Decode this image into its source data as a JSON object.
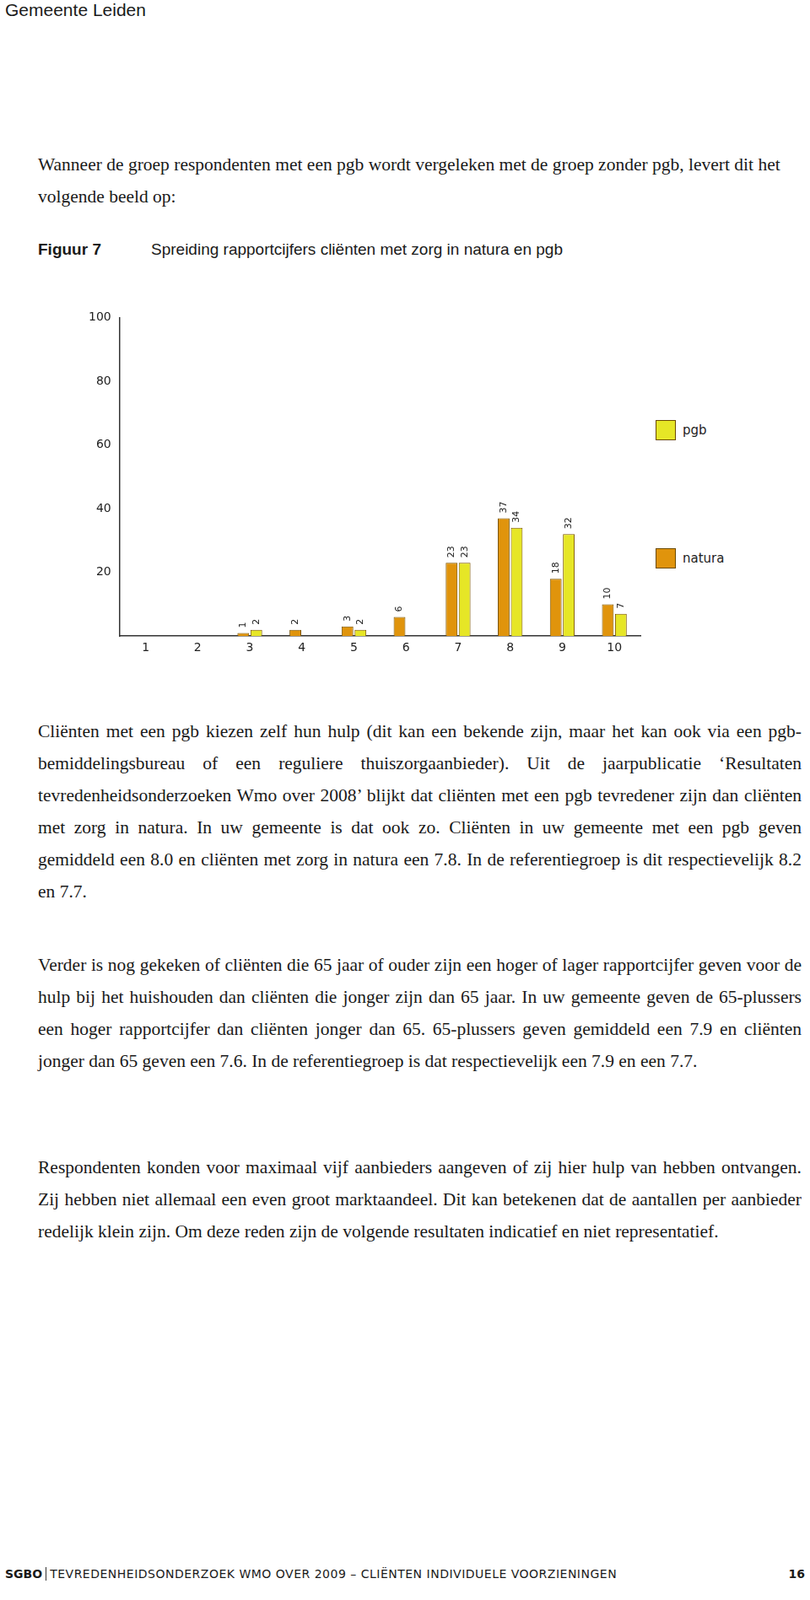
{
  "header": "Gemeente Leiden",
  "intro": "Wanneer de groep respondenten met een pgb wordt vergeleken met de groep zonder pgb, levert dit het volgende beeld op:",
  "figure_label": "Figuur 7",
  "chart_data": {
    "type": "bar",
    "title": "Spreiding rapportcijfers cliënten met zorg in natura en pgb",
    "categories": [
      "1",
      "2",
      "3",
      "4",
      "5",
      "6",
      "7",
      "8",
      "9",
      "10"
    ],
    "series": [
      {
        "name": "natura",
        "color": "#e0940c",
        "values": [
          null,
          null,
          1,
          2,
          3,
          6,
          23,
          37,
          18,
          10
        ]
      },
      {
        "name": "pgb",
        "color": "#e6e626",
        "values": [
          null,
          null,
          2,
          null,
          2,
          null,
          23,
          34,
          32,
          7
        ]
      }
    ],
    "ylim": [
      0,
      100
    ],
    "yticks": [
      20,
      40,
      60,
      80,
      100
    ],
    "grid": false,
    "legend": "right",
    "data_labels": true
  },
  "paragraphs": [
    "Cliënten met een pgb kiezen zelf hun hulp (dit kan een bekende zijn, maar het kan ook via een pgb-bemiddelingsbureau of een reguliere thuiszorgaanbieder). Uit de jaarpublicatie ‘Resultaten tevredenheidsonderzoeken Wmo over 2008’ blijkt dat cliënten met een pgb tevredener zijn dan cliënten met zorg in natura. In uw gemeente is dat ook zo. Cliënten in uw gemeente met een pgb geven gemiddeld een 8.0 en cliënten met zorg in natura een 7.8. In de referentiegroep is dit respectievelijk 8.2 en 7.7.",
    "Verder is nog gekeken of cliënten die 65 jaar of ouder zijn een hoger of lager rapportcijfer geven voor de hulp bij het huishouden dan cliënten die jonger zijn dan 65 jaar. In uw gemeente geven de 65-plussers een hoger rapportcijfer dan cliënten jonger dan 65. 65-plussers geven gemiddeld een 7.9 en cliënten jonger dan 65 geven een 7.6. In de referentiegroep is dat respectievelijk een 7.9 en een 7.7.",
    "Respondenten konden voor maximaal vijf aanbieders aangeven of zij hier hulp van hebben ontvangen. Zij hebben niet allemaal een even groot marktaandeel. Dit kan betekenen dat de aantallen per aanbieder redelijk klein zijn. Om deze reden zijn de volgende resultaten indicatief en niet representatief."
  ],
  "footer": {
    "left": "SGBO",
    "text": "TEVREDENHEIDSONDERZOEK WMO OVER 2009 – CLIËNTEN INDIVIDUELE VOORZIENINGEN",
    "page": "16"
  }
}
